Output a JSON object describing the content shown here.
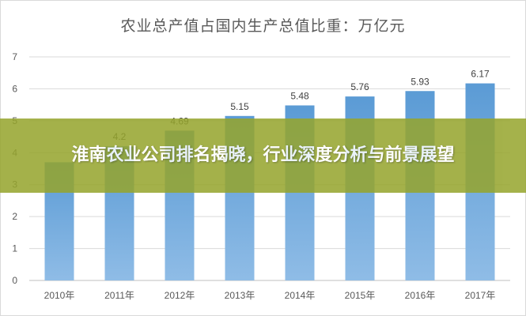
{
  "chart_data": {
    "type": "bar",
    "title": "农业总产值占国内生产总值比重：万亿元",
    "categories": [
      "2010年",
      "2011年",
      "2012年",
      "2013年",
      "2014年",
      "2015年",
      "2016年",
      "2017年"
    ],
    "values": [
      3.7,
      4.2,
      4.69,
      5.15,
      5.48,
      5.76,
      5.93,
      6.17
    ],
    "data_labels": [
      "",
      "4.2",
      "4.69",
      "5.15",
      "5.48",
      "5.76",
      "5.93",
      "6.17"
    ],
    "ylim": [
      0,
      7
    ],
    "yticks": [
      "0",
      "1",
      "2",
      "3",
      "4",
      "5",
      "6",
      "7"
    ],
    "grid": true,
    "bar_color": "#5b9bd5",
    "bar_color_light": "#8fbce6"
  },
  "overlay": {
    "text": "淮南农业公司排名揭晓，行业深度分析与前景展望",
    "color": "#96a52d"
  }
}
